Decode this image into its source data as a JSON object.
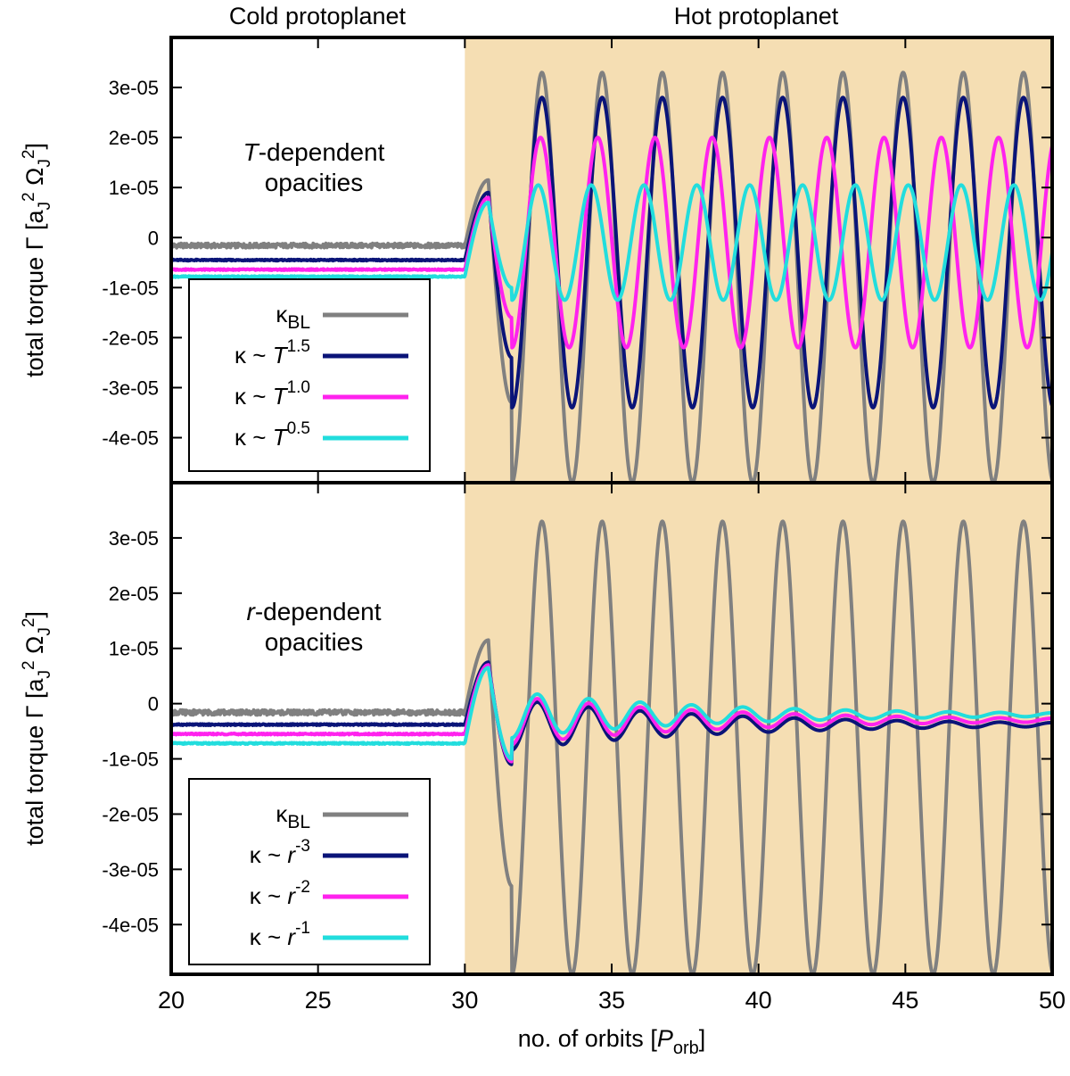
{
  "header": {
    "left_label": "Cold protoplanet",
    "right_label": "Hot protoplanet"
  },
  "colors": {
    "hot_shade": "#f5deb3",
    "kappa_bl": "#808080",
    "dark_blue": "#0a1478",
    "magenta": "#ff22ee",
    "cyan": "#22dddd",
    "frame": "#000000"
  },
  "chart_data": [
    {
      "type": "line",
      "panel": "top",
      "note_prefix": "T",
      "note_suffix": "-dependent",
      "note_line2": "opacities",
      "xlabel": "no. of orbits [P",
      "xlabel_sub": "orb",
      "xlabel_end": "]",
      "ylabel": "total torque Γ [a",
      "xlim": [
        20,
        50
      ],
      "ylim": [
        -4.9e-05,
        4e-05
      ],
      "x_ticks": [
        20,
        25,
        30,
        35,
        40,
        45,
        50
      ],
      "y_ticks": [
        -4e-05,
        -3e-05,
        -2e-05,
        -1e-05,
        0,
        1e-05,
        2e-05,
        3e-05
      ],
      "y_tick_labels": [
        "-4e-05",
        "-3e-05",
        "-2e-05",
        "-1e-05",
        "0",
        "1e-05",
        "2e-05",
        "3e-05"
      ],
      "hot_region": [
        30,
        50
      ],
      "series": [
        {
          "name": "κBL",
          "kappa": "κ",
          "sub": "BL",
          "color_key": "kappa_bl",
          "cold_level": -1.6e-06,
          "amp": 4.1e-05,
          "center": -8e-06,
          "period": 2.05,
          "decay": 0.0,
          "first_peak": 1.15e-05,
          "first_trough": -3.3e-05
        },
        {
          "name": "κ ~ T1.5",
          "kappa": "κ ~ ",
          "var": "T",
          "exp": "1.5",
          "color_key": "dark_blue",
          "cold_level": -4.5e-06,
          "amp": 3.1e-05,
          "center": -3e-06,
          "period": 2.05,
          "decay": 0.0,
          "first_peak": 9e-06,
          "first_trough": -2.4e-05
        },
        {
          "name": "κ ~ T1.0",
          "kappa": "κ ~ ",
          "var": "T",
          "exp": "1.0",
          "color_key": "magenta",
          "cold_level": -6.4e-06,
          "amp": 2.1e-05,
          "center": -1e-06,
          "period": 1.95,
          "decay": 0.0,
          "first_peak": 8e-06,
          "first_trough": -1.6e-05
        },
        {
          "name": "κ ~ T0.5",
          "kappa": "κ ~ ",
          "var": "T",
          "exp": "0.5",
          "color_key": "cyan",
          "cold_level": -7.8e-06,
          "amp": 1.15e-05,
          "center": -1e-06,
          "period": 1.8,
          "decay": 0.0,
          "first_peak": 7e-06,
          "first_trough": -1e-05
        }
      ]
    },
    {
      "type": "line",
      "panel": "bottom",
      "note_prefix": "r",
      "note_suffix": "-dependent",
      "note_line2": "opacities",
      "xlabel": "no. of orbits [P",
      "xlabel_sub": "orb",
      "xlabel_end": "]",
      "ylabel": "total torque Γ [a",
      "xlim": [
        20,
        50
      ],
      "ylim": [
        -4.9e-05,
        4e-05
      ],
      "x_ticks": [
        20,
        25,
        30,
        35,
        40,
        45,
        50
      ],
      "x_tick_labels": [
        "20",
        "25",
        "30",
        "35",
        "40",
        "45",
        "50"
      ],
      "y_ticks": [
        -4e-05,
        -3e-05,
        -2e-05,
        -1e-05,
        0,
        1e-05,
        2e-05,
        3e-05
      ],
      "y_tick_labels": [
        "-4e-05",
        "-3e-05",
        "-2e-05",
        "-1e-05",
        "0",
        "1e-05",
        "2e-05",
        "3e-05"
      ],
      "hot_region": [
        30,
        50
      ],
      "series": [
        {
          "name": "κBL",
          "kappa": "κ",
          "sub": "BL",
          "color_key": "kappa_bl",
          "cold_level": -1.6e-06,
          "amp": 4.1e-05,
          "center": -8e-06,
          "period": 2.05,
          "decay": 0.0,
          "first_peak": 1.15e-05,
          "first_trough": -3.3e-05
        },
        {
          "name": "κ ~ r-3",
          "kappa": "κ ~ ",
          "var": "r",
          "exp": "-3",
          "color_key": "dark_blue",
          "cold_level": -3.8e-06,
          "amp": 1.15e-05,
          "center": -3.8e-06,
          "period": 1.75,
          "decay": 0.14,
          "first_peak": 7.5e-06,
          "first_trough": -1.1e-05
        },
        {
          "name": "κ ~ r-2",
          "kappa": "κ ~ ",
          "var": "r",
          "exp": "-2",
          "color_key": "magenta",
          "cold_level": -5.5e-06,
          "amp": 1.1e-05,
          "center": -3e-06,
          "period": 1.75,
          "decay": 0.14,
          "first_peak": 7e-06,
          "first_trough": -1.05e-05
        },
        {
          "name": "κ ~ r-1",
          "kappa": "κ ~ ",
          "var": "r",
          "exp": "-1",
          "color_key": "cyan",
          "cold_level": -7.2e-06,
          "amp": 1.05e-05,
          "center": -2e-06,
          "period": 1.75,
          "decay": 0.14,
          "first_peak": 6.5e-06,
          "first_trough": -1e-05
        }
      ]
    }
  ]
}
